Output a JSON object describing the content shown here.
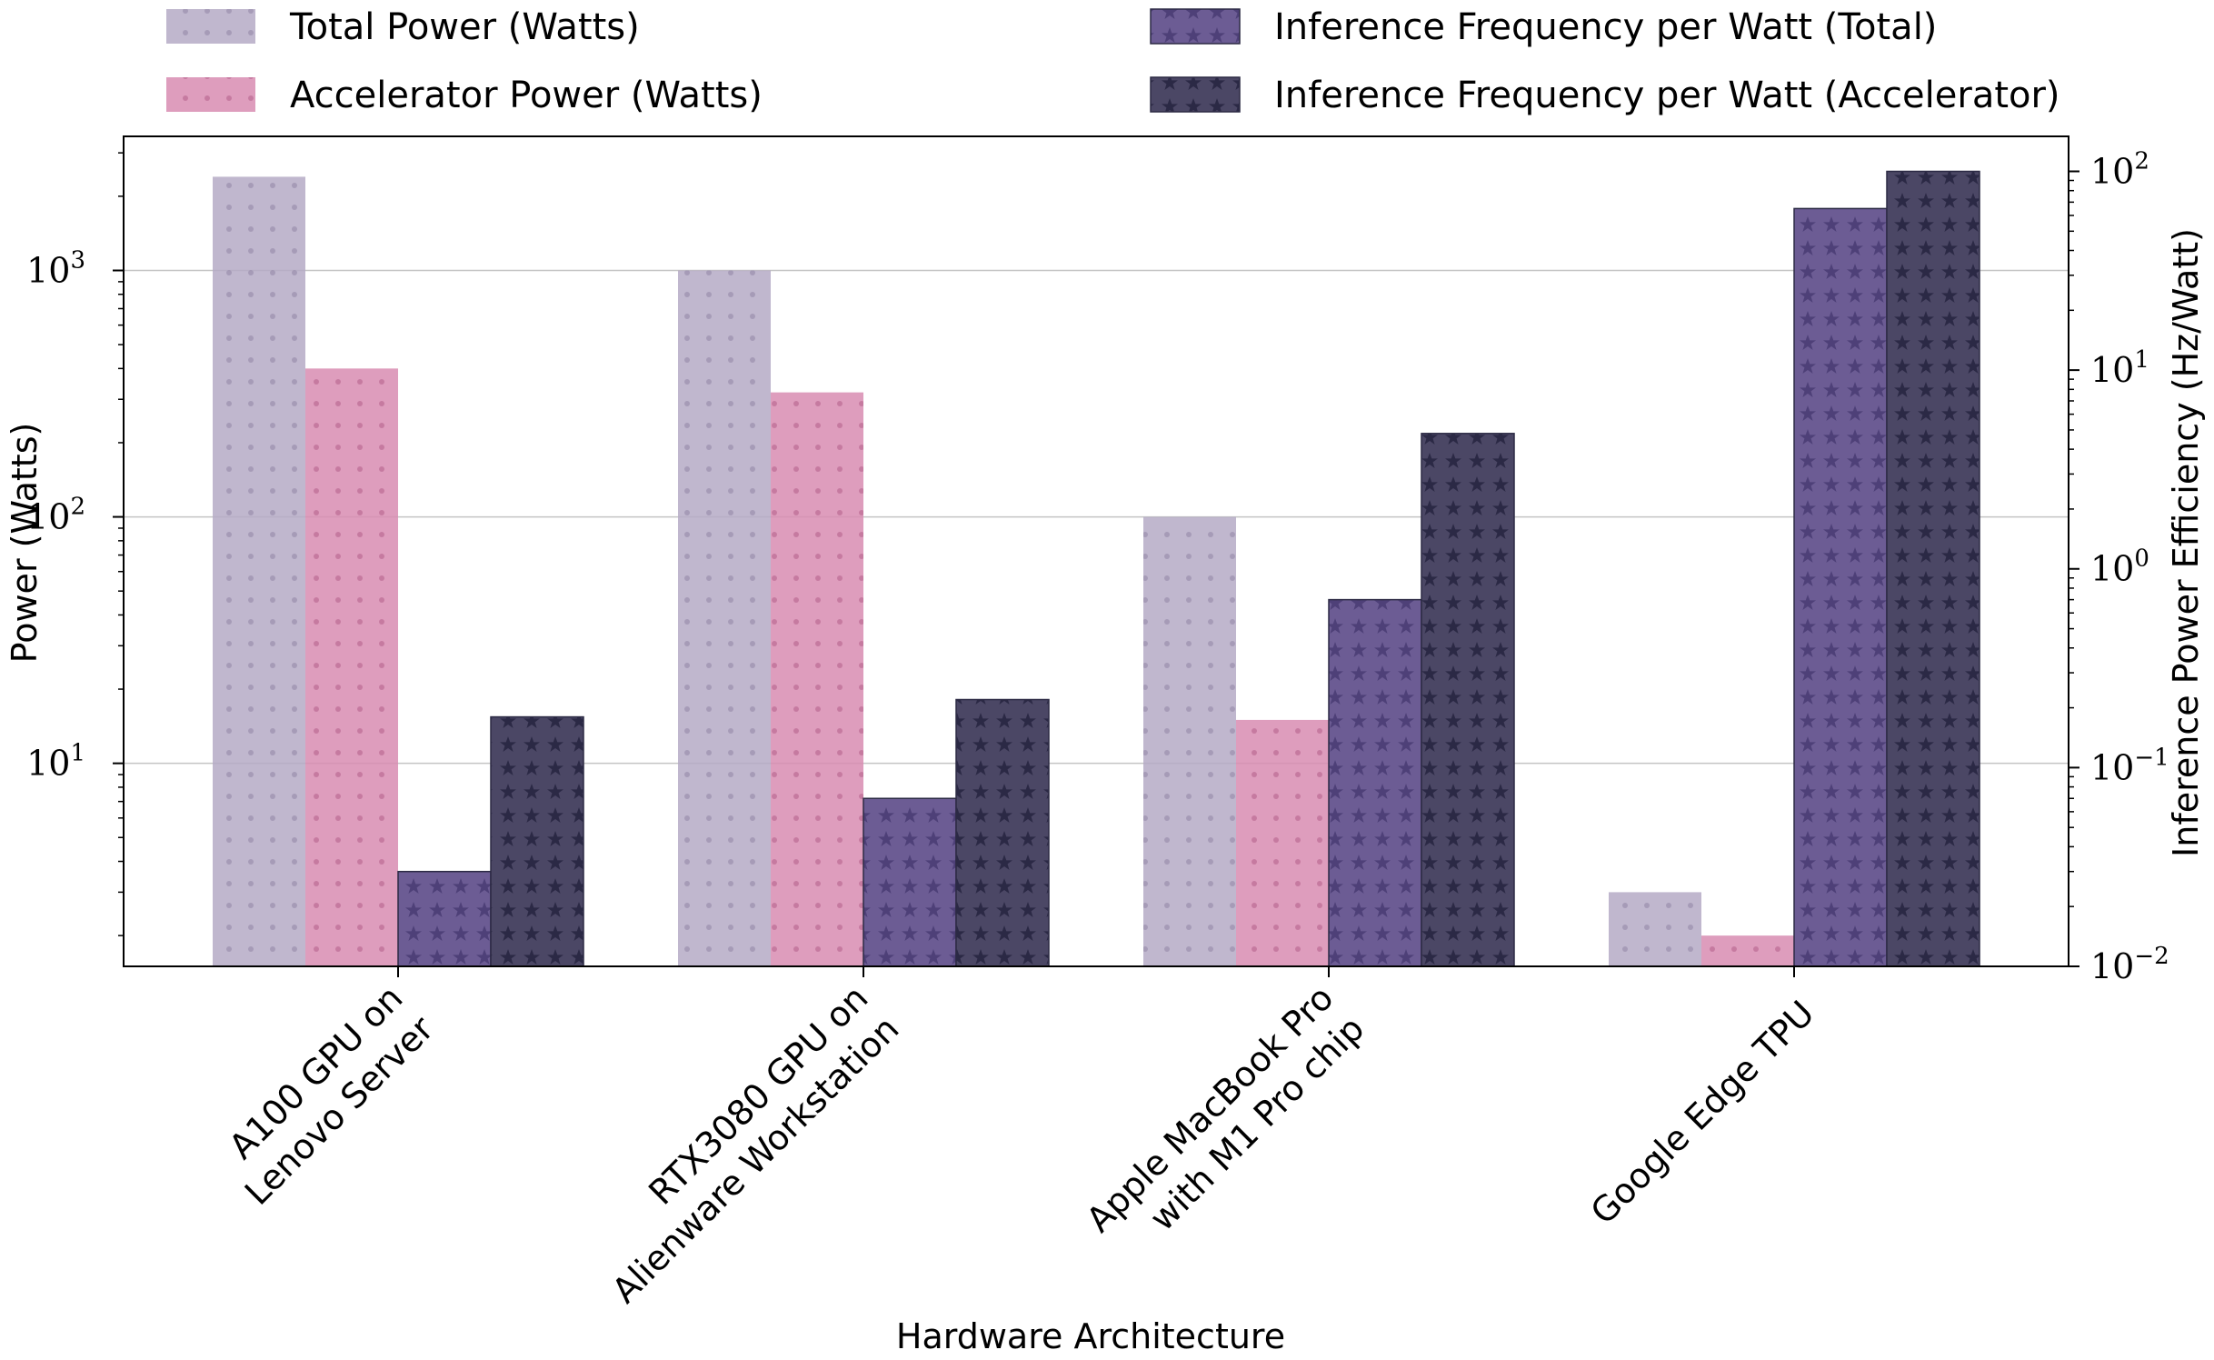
{
  "chart_data": {
    "type": "bar",
    "xlabel": "Hardware Architecture",
    "ylabel_left": "Power (Watts)",
    "ylabel_right": "Inference Power Efficiency (Hz/Watt)",
    "yscale_left": "log",
    "yscale_right": "log",
    "ylim_left": [
      1.5,
      3500
    ],
    "ylim_right": [
      0.01,
      150
    ],
    "left_ticks": [
      {
        "value": 10,
        "label": "10",
        "exp": "1"
      },
      {
        "value": 100,
        "label": "10",
        "exp": "2"
      },
      {
        "value": 1000,
        "label": "10",
        "exp": "3"
      }
    ],
    "right_ticks": [
      {
        "value": 0.01,
        "label": "10",
        "exp": "−2"
      },
      {
        "value": 0.1,
        "label": "10",
        "exp": "−1"
      },
      {
        "value": 1,
        "label": "10",
        "exp": "0"
      },
      {
        "value": 10,
        "label": "10",
        "exp": "1"
      },
      {
        "value": 100,
        "label": "10",
        "exp": "2"
      }
    ],
    "grid": "horizontal",
    "legend_position": "top",
    "categories": [
      {
        "lines": [
          "A100 GPU on",
          "Lenovo Server"
        ]
      },
      {
        "lines": [
          "RTX3080 GPU on",
          "Alienware Workstation"
        ]
      },
      {
        "lines": [
          "Apple MacBook Pro",
          "with M1 Pro chip"
        ]
      },
      {
        "lines": [
          "Google Edge TPU"
        ]
      }
    ],
    "series": [
      {
        "name": "Total Power (Watts)",
        "axis": "left",
        "pattern": "dots",
        "color": "#b5aac6",
        "values": [
          2400,
          1000,
          100,
          3
        ]
      },
      {
        "name": "Accelerator Power (Watts)",
        "axis": "left",
        "pattern": "dots",
        "color": "#d88cb2",
        "values": [
          400,
          320,
          15,
          2
        ]
      },
      {
        "name": "Inference Frequency per Watt (Total)",
        "axis": "right",
        "pattern": "stars",
        "color": "#6c5c94",
        "values": [
          0.03,
          0.07,
          0.7,
          65
        ]
      },
      {
        "name": "Inference Frequency per Watt (Accelerator)",
        "axis": "right",
        "pattern": "stars",
        "color": "#4b4765",
        "values": [
          0.18,
          0.22,
          4.8,
          100
        ]
      }
    ]
  }
}
